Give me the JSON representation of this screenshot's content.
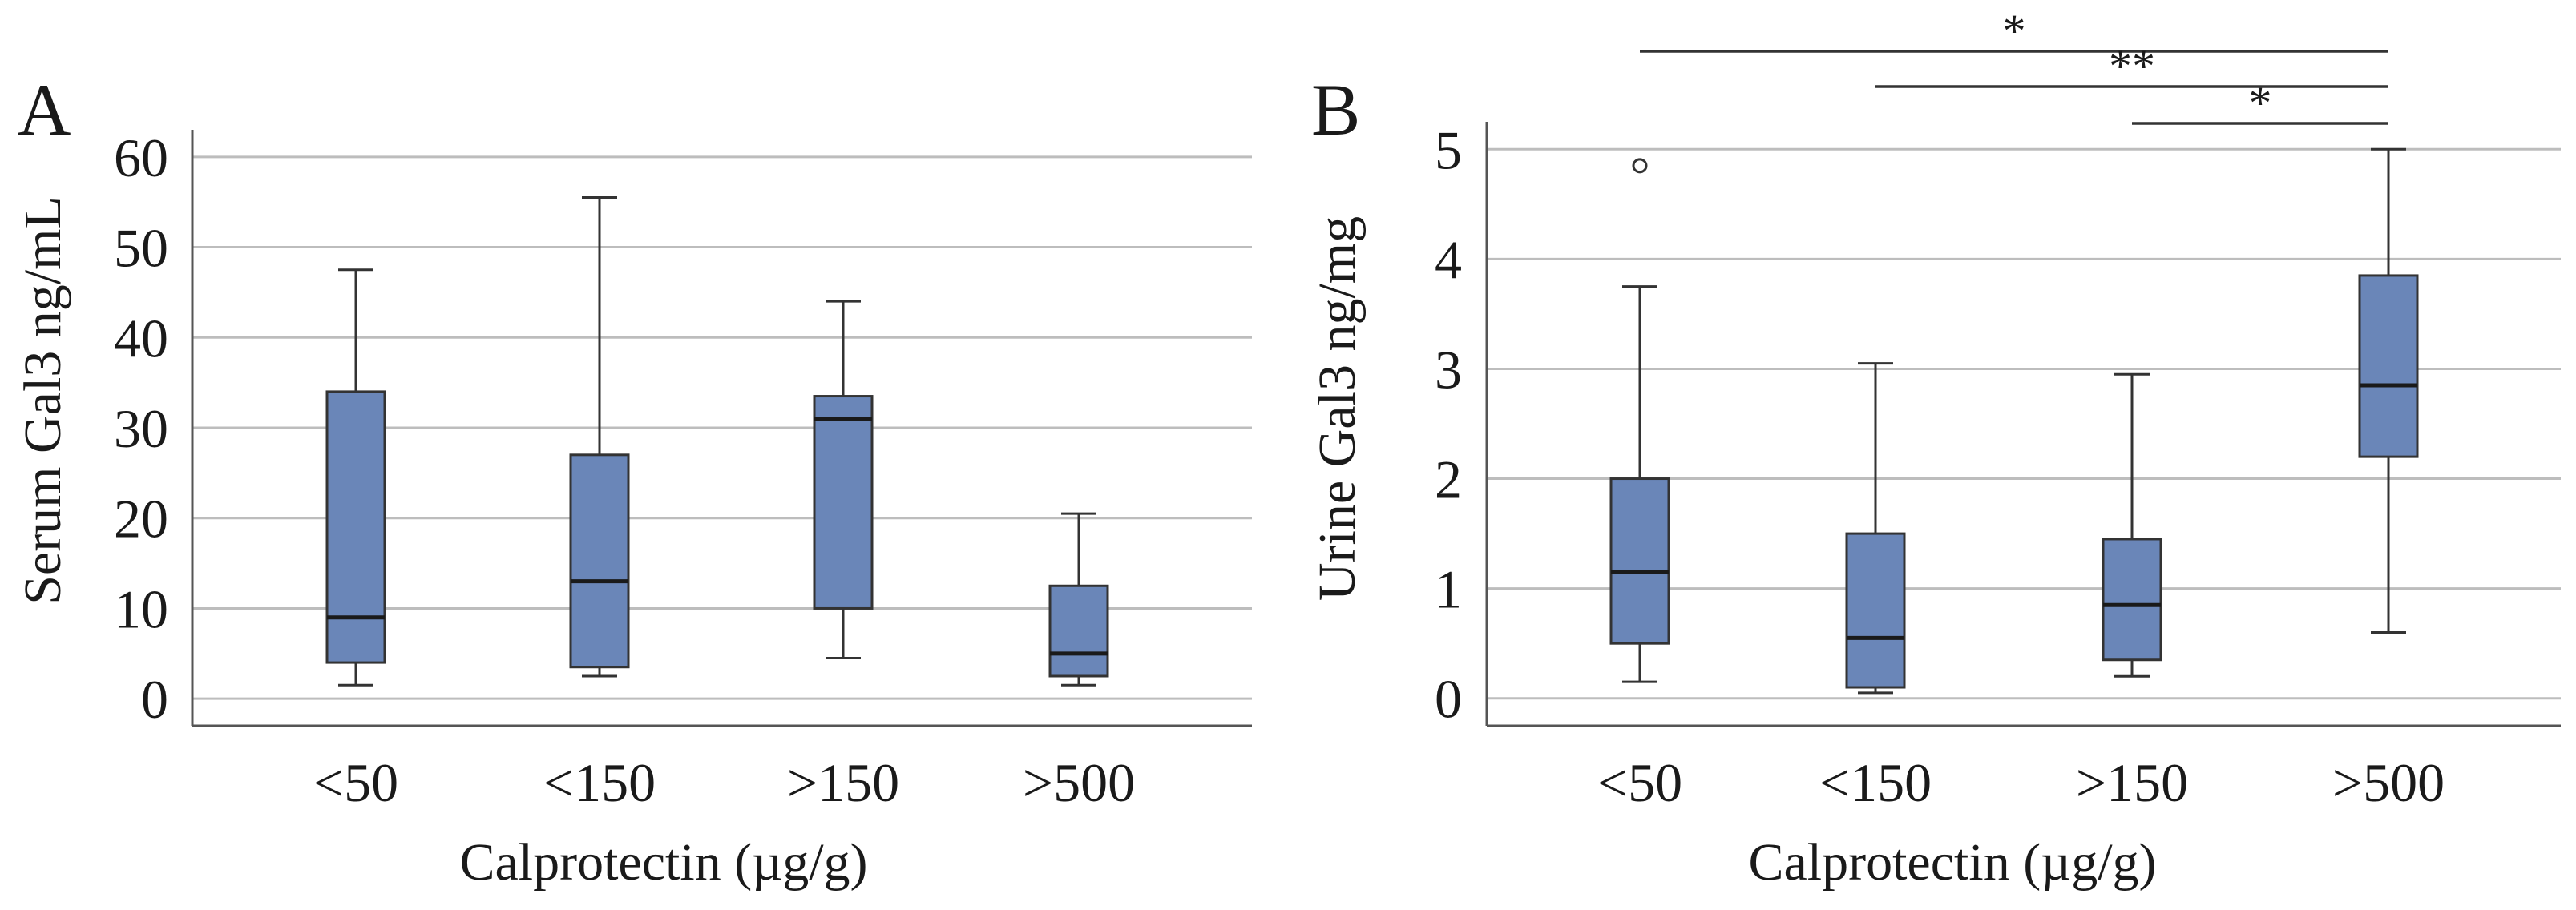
{
  "chart_data": [
    {
      "type": "boxplot",
      "panel": "A",
      "xlabel": "Calprotectin (µg/g)",
      "ylabel": "Serum Gal3 ng/mL",
      "ylim": [
        -3,
        63
      ],
      "yticks": [
        0,
        10,
        20,
        30,
        40,
        50,
        60
      ],
      "categories": [
        "<50",
        "<150",
        ">150",
        ">500"
      ],
      "grid": true,
      "boxes": [
        {
          "category": "<50",
          "min": 1.5,
          "q1": 4,
          "median": 9,
          "q3": 34,
          "max": 47.5,
          "outliers": []
        },
        {
          "category": "<150",
          "min": 2.5,
          "q1": 3.5,
          "median": 13,
          "q3": 27,
          "max": 55.5,
          "outliers": []
        },
        {
          "category": ">150",
          "min": 4.5,
          "q1": 10,
          "median": 31,
          "q3": 33.5,
          "max": 44,
          "outliers": []
        },
        {
          "category": ">500",
          "min": 1.5,
          "q1": 2.5,
          "median": 5,
          "q3": 12.5,
          "max": 20.5,
          "outliers": []
        }
      ],
      "significance": []
    },
    {
      "type": "boxplot",
      "panel": "B",
      "xlabel": "Calprotectin (µg/g)",
      "ylabel": "Urine Gal3 ng/mg",
      "ylim": [
        -0.25,
        5.25
      ],
      "yticks": [
        0,
        1,
        2,
        3,
        4,
        5
      ],
      "categories": [
        "<50",
        "<150",
        ">150",
        ">500"
      ],
      "grid": true,
      "boxes": [
        {
          "category": "<50",
          "min": 0.15,
          "q1": 0.5,
          "median": 1.15,
          "q3": 2.0,
          "max": 3.75,
          "outliers": [
            4.85
          ]
        },
        {
          "category": "<150",
          "min": 0.05,
          "q1": 0.1,
          "median": 0.55,
          "q3": 1.5,
          "max": 3.05,
          "outliers": []
        },
        {
          "category": ">150",
          "min": 0.2,
          "q1": 0.35,
          "median": 0.85,
          "q3": 1.45,
          "max": 2.95,
          "outliers": []
        },
        {
          "category": ">500",
          "min": 0.6,
          "q1": 2.2,
          "median": 2.85,
          "q3": 3.85,
          "max": 5.0,
          "outliers": []
        }
      ],
      "significance": [
        {
          "from": "<50",
          "to": ">500",
          "label": "*"
        },
        {
          "from": "<150",
          "to": ">500",
          "label": "**"
        },
        {
          "from": ">150",
          "to": ">500",
          "label": "*"
        }
      ]
    }
  ]
}
